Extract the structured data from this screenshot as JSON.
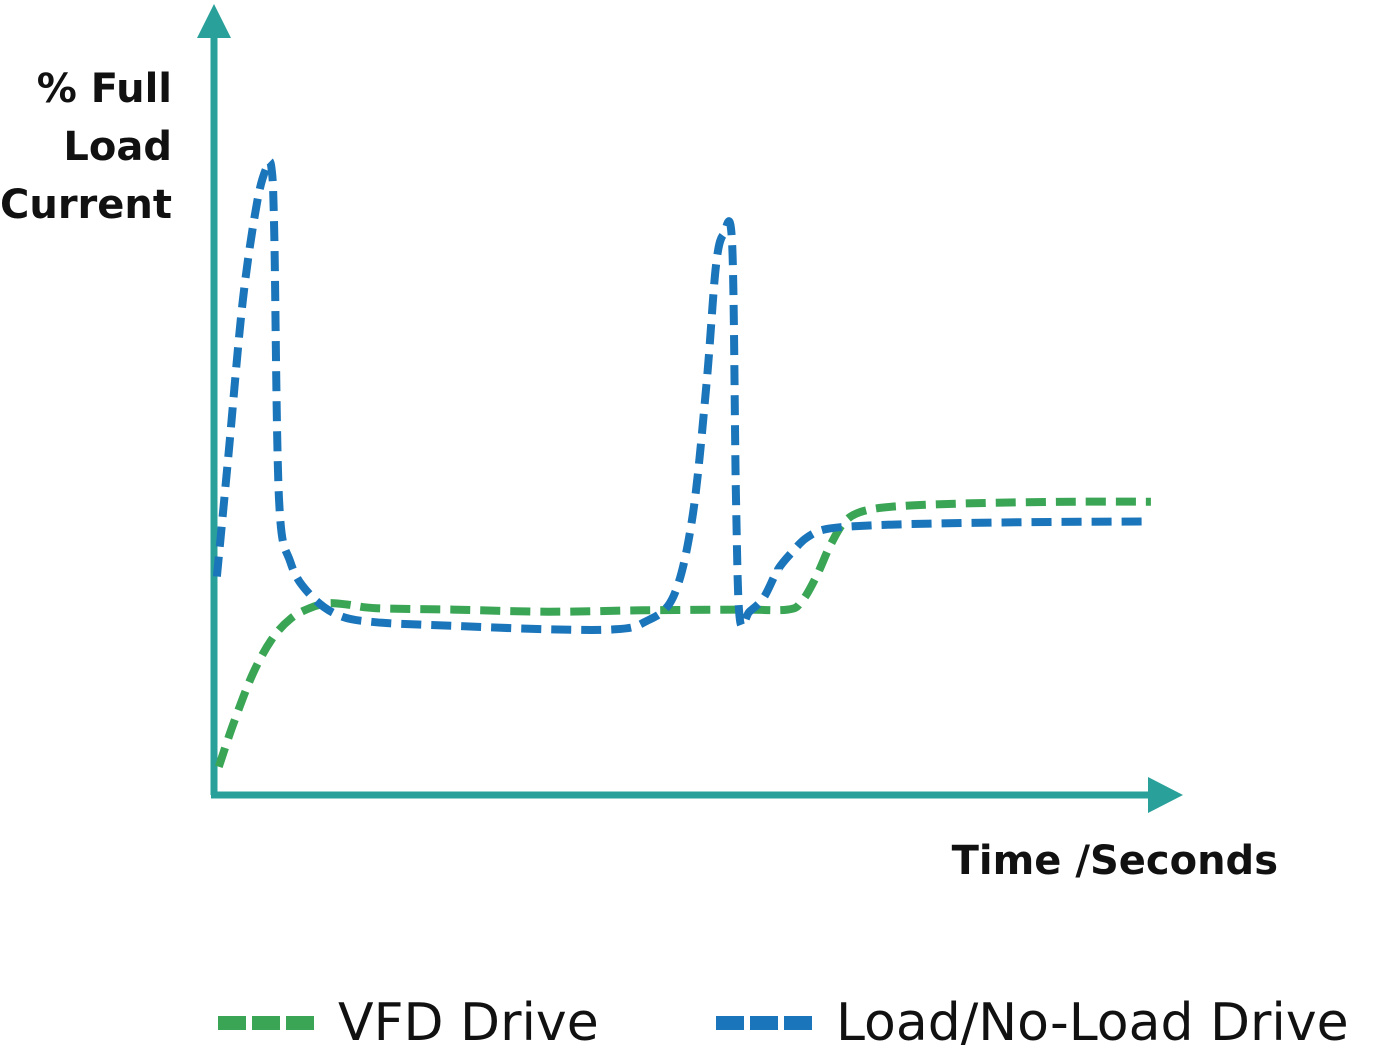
{
  "chart_data": {
    "type": "line",
    "ylabel": [
      "% Full",
      "Load",
      "Current"
    ],
    "xlabel": "Time /Seconds",
    "xlim": [
      0,
      100
    ],
    "ylim": [
      0,
      100
    ],
    "grid": false,
    "legend_position": "bottom",
    "colors": {
      "axis": "#2aa09a",
      "vfd": "#3aa655",
      "load": "#1b75bb"
    },
    "series": [
      {
        "name": "VFD Drive",
        "color": "#3aa655",
        "x": [
          0.5,
          2,
          4,
          6,
          8,
          10,
          12,
          14,
          17,
          25,
          35,
          45,
          55,
          60,
          61.5,
          63,
          64.5,
          66,
          68,
          72,
          80,
          90,
          98
        ],
        "y": [
          4,
          10,
          17,
          22,
          25,
          26.5,
          27.2,
          27,
          26.5,
          26.3,
          26,
          26.2,
          26.3,
          26.3,
          27.5,
          31,
          35.5,
          38.8,
          40.3,
          41,
          41.4,
          41.6,
          41.6
        ]
      },
      {
        "name": "Load/No-Load Drive",
        "color": "#1b75bb",
        "x": [
          0.3,
          1.5,
          3,
          4.5,
          5.5,
          6,
          6.3,
          6.8,
          8,
          10,
          13,
          17,
          25,
          35,
          42,
          45,
          48,
          50,
          51.5,
          52.5,
          53.3,
          54.2,
          54.6,
          55,
          56,
          57.5,
          59,
          60.5,
          62,
          64,
          68,
          75,
          85,
          98
        ],
        "y": [
          31,
          48,
          70,
          84,
          89,
          89,
          80,
          42,
          33,
          28.5,
          25.5,
          24.5,
          24,
          23.5,
          23.5,
          24.5,
          28,
          39,
          58,
          75,
          79.5,
          78,
          42,
          25,
          26,
          28,
          32,
          34.5,
          36.5,
          37.7,
          38.2,
          38.5,
          38.7,
          38.8
        ]
      }
    ]
  }
}
